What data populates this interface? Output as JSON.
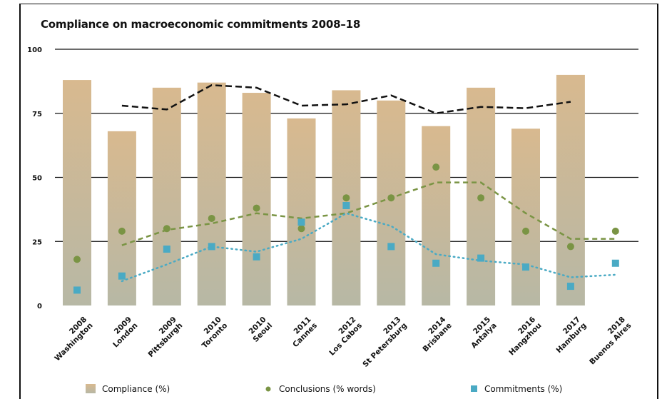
{
  "chart_data": {
    "type": "bar",
    "title": "Compliance on macroeconomic commitments 2008–18",
    "xlabel": "",
    "ylabel": "",
    "ylim": [
      0,
      100
    ],
    "yticks": [
      "0",
      "25",
      "50",
      "75",
      "100"
    ],
    "grid": true,
    "legend_position": "bottom",
    "categories": [
      [
        "2008",
        "Washington"
      ],
      [
        "2009",
        "London"
      ],
      [
        "2009",
        "Pittsburgh"
      ],
      [
        "2010",
        "Toronto"
      ],
      [
        "2010",
        "Seoul"
      ],
      [
        "2011",
        "Cannes"
      ],
      [
        "2012",
        "Los Cabos"
      ],
      [
        "2013",
        "St Petersburg"
      ],
      [
        "2014",
        "Brisbane"
      ],
      [
        "2015",
        "Antalya"
      ],
      [
        "2016",
        "Hangzhou"
      ],
      [
        "2017",
        "Hamburg"
      ],
      [
        "2018",
        "Buenos Aires"
      ]
    ],
    "series": [
      {
        "name": "Compliance (%)",
        "kind": "bar",
        "color_top": "#d8b98f",
        "color_bottom": "#b7b8a5",
        "values": [
          88,
          68,
          85,
          87,
          83,
          73,
          84,
          80,
          70,
          85,
          69,
          90,
          null
        ]
      },
      {
        "name": "Conclusions (% words)",
        "kind": "dot",
        "color": "#7a9444",
        "values": [
          18,
          29,
          30,
          34,
          38,
          30,
          42,
          42,
          54,
          42,
          29,
          23,
          29
        ]
      },
      {
        "name": "Commitments (%)",
        "kind": "square",
        "color": "#4aaac4",
        "values": [
          6,
          11.5,
          22,
          23,
          19,
          32.5,
          39,
          23,
          16.5,
          18.5,
          15,
          7.5,
          16.5
        ]
      },
      {
        "kind": "trend-line",
        "style": "dashed",
        "color": "#111111",
        "values": [
          null,
          78,
          76.5,
          86,
          85,
          78,
          78.5,
          82,
          75,
          77.5,
          77,
          79.5,
          null
        ]
      },
      {
        "kind": "trend-line",
        "style": "dashed",
        "color": "#7a9444",
        "values": [
          null,
          23.5,
          29.5,
          32,
          36,
          34,
          36,
          42,
          48,
          48,
          36,
          26,
          26
        ]
      },
      {
        "kind": "trend-line",
        "style": "dotted",
        "color": "#4aaac4",
        "values": [
          null,
          9.5,
          16,
          23,
          21,
          26,
          36,
          31,
          20,
          17.5,
          16,
          11,
          12
        ]
      }
    ]
  }
}
